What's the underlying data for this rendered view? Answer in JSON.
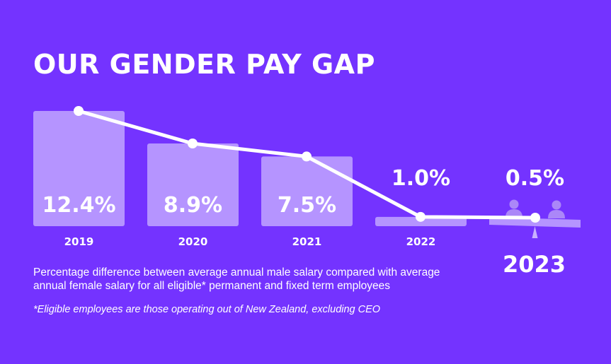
{
  "title": "OUR GENDER PAY GAP",
  "description": "Percentage difference between average annual male salary compared with average annual female salary for all eligible* permanent and fixed term employees",
  "footnote": "*Eligible employees are those operating out of New Zealand, excluding CEO",
  "colors": {
    "background": "#7433ff",
    "bar": "#b594ff",
    "line": "#ffffff",
    "person_icon": "#ab87f8",
    "scale_pivot": "#c9b0ff"
  },
  "icons": [
    "person-icon",
    "person-icon",
    "balance-scale-icon"
  ],
  "chart_data": {
    "type": "bar",
    "categories": [
      "2019",
      "2020",
      "2021",
      "2022",
      "2023"
    ],
    "values": [
      12.4,
      8.9,
      7.5,
      1.0,
      0.5
    ],
    "value_labels": [
      "12.4%",
      "8.9%",
      "7.5%",
      "1.0%",
      "0.5%"
    ],
    "overlay": "line connecting bar tops with white markers",
    "ylim": [
      0,
      14
    ],
    "grid": false,
    "legend": "none",
    "highlight_category": "2023"
  }
}
